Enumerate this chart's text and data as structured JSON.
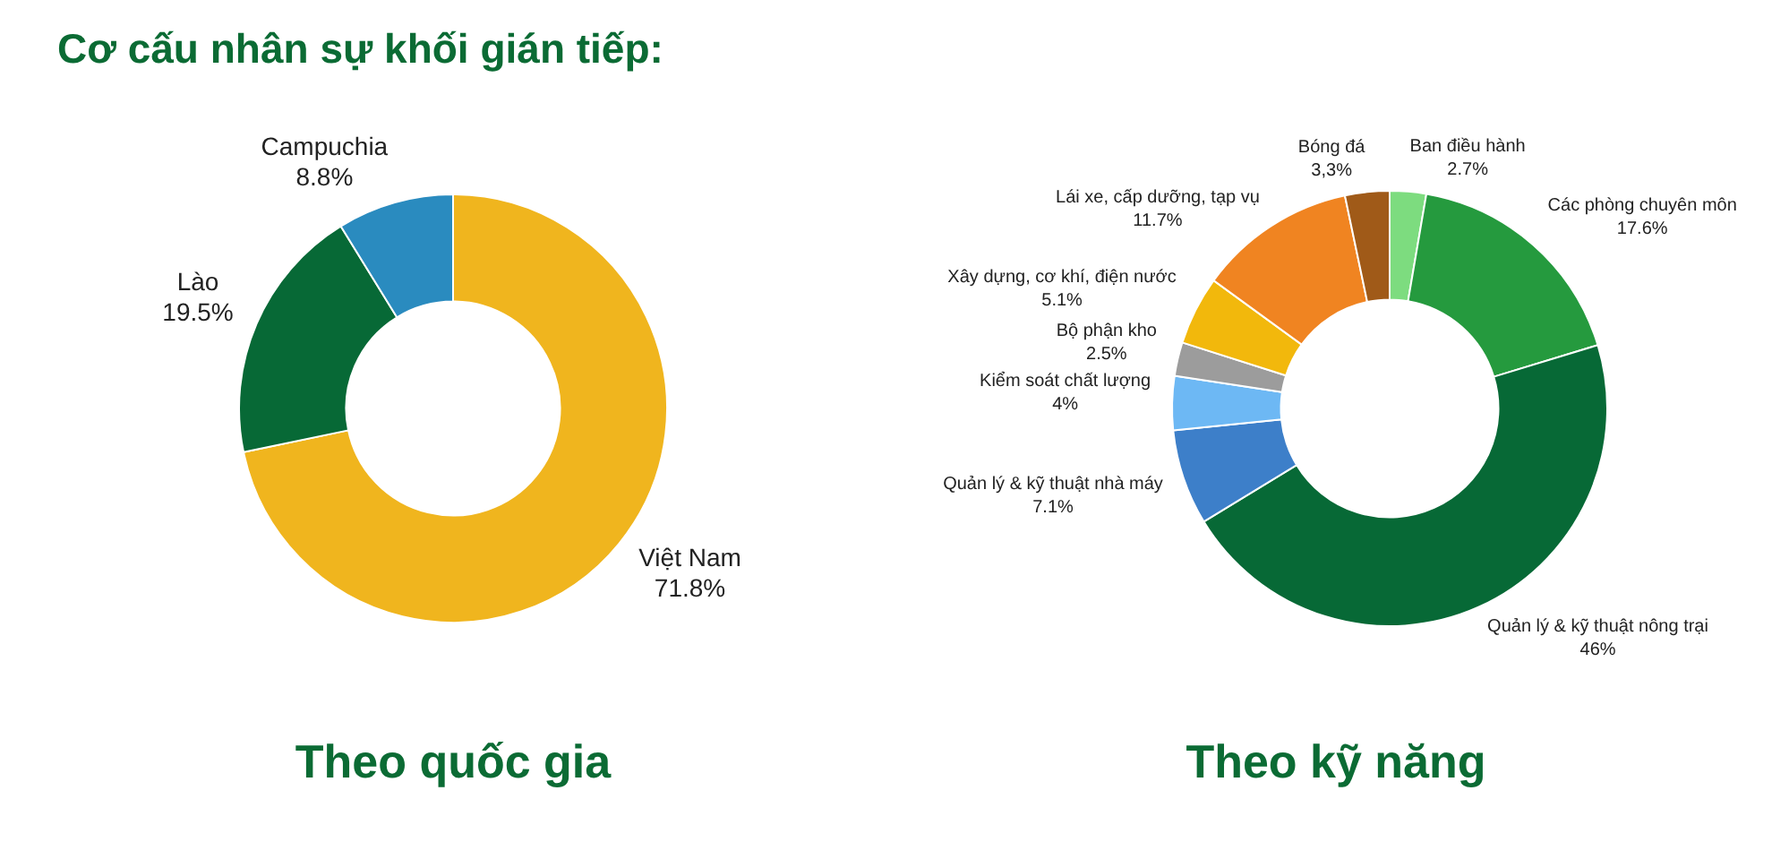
{
  "chart_data": [
    {
      "type": "donut",
      "title": "Cơ cấu nhân sự khối gián tiếp:",
      "subtitle": "Theo quốc gia",
      "categories": [
        "Việt Nam",
        "Lào",
        "Campuchia"
      ],
      "values": [
        71.8,
        19.5,
        8.8
      ],
      "value_labels": [
        "71.8%",
        "19.5%",
        "8.8%"
      ],
      "colors": [
        "#f0b51e",
        "#076936",
        "#2a8bbf"
      ]
    },
    {
      "type": "donut",
      "subtitle": "Theo kỹ năng",
      "categories": [
        "Ban điều hành",
        "Các phòng chuyên môn",
        "Quản lý & kỹ thuật nông trại",
        "Quản lý & kỹ thuật nhà máy",
        "Kiểm soát chất lượng",
        "Bộ phận kho",
        "Xây dựng, cơ khí, điện nước",
        "Lái xe, cấp dưỡng, tạp vụ",
        "Bóng đá"
      ],
      "values": [
        2.7,
        17.6,
        46,
        7.1,
        4,
        2.5,
        5.1,
        11.7,
        3.3
      ],
      "value_labels": [
        "2.7%",
        "17.6%",
        "46%",
        "7.1%",
        "4%",
        "2.5%",
        "5.1%",
        "11.7%",
        "3,3%"
      ],
      "colors": [
        "#7ddc7f",
        "#259a3e",
        "#076936",
        "#3d7fc9",
        "#6db8f4",
        "#9c9c9c",
        "#f2b80c",
        "#f08421",
        "#a05a18"
      ]
    }
  ]
}
